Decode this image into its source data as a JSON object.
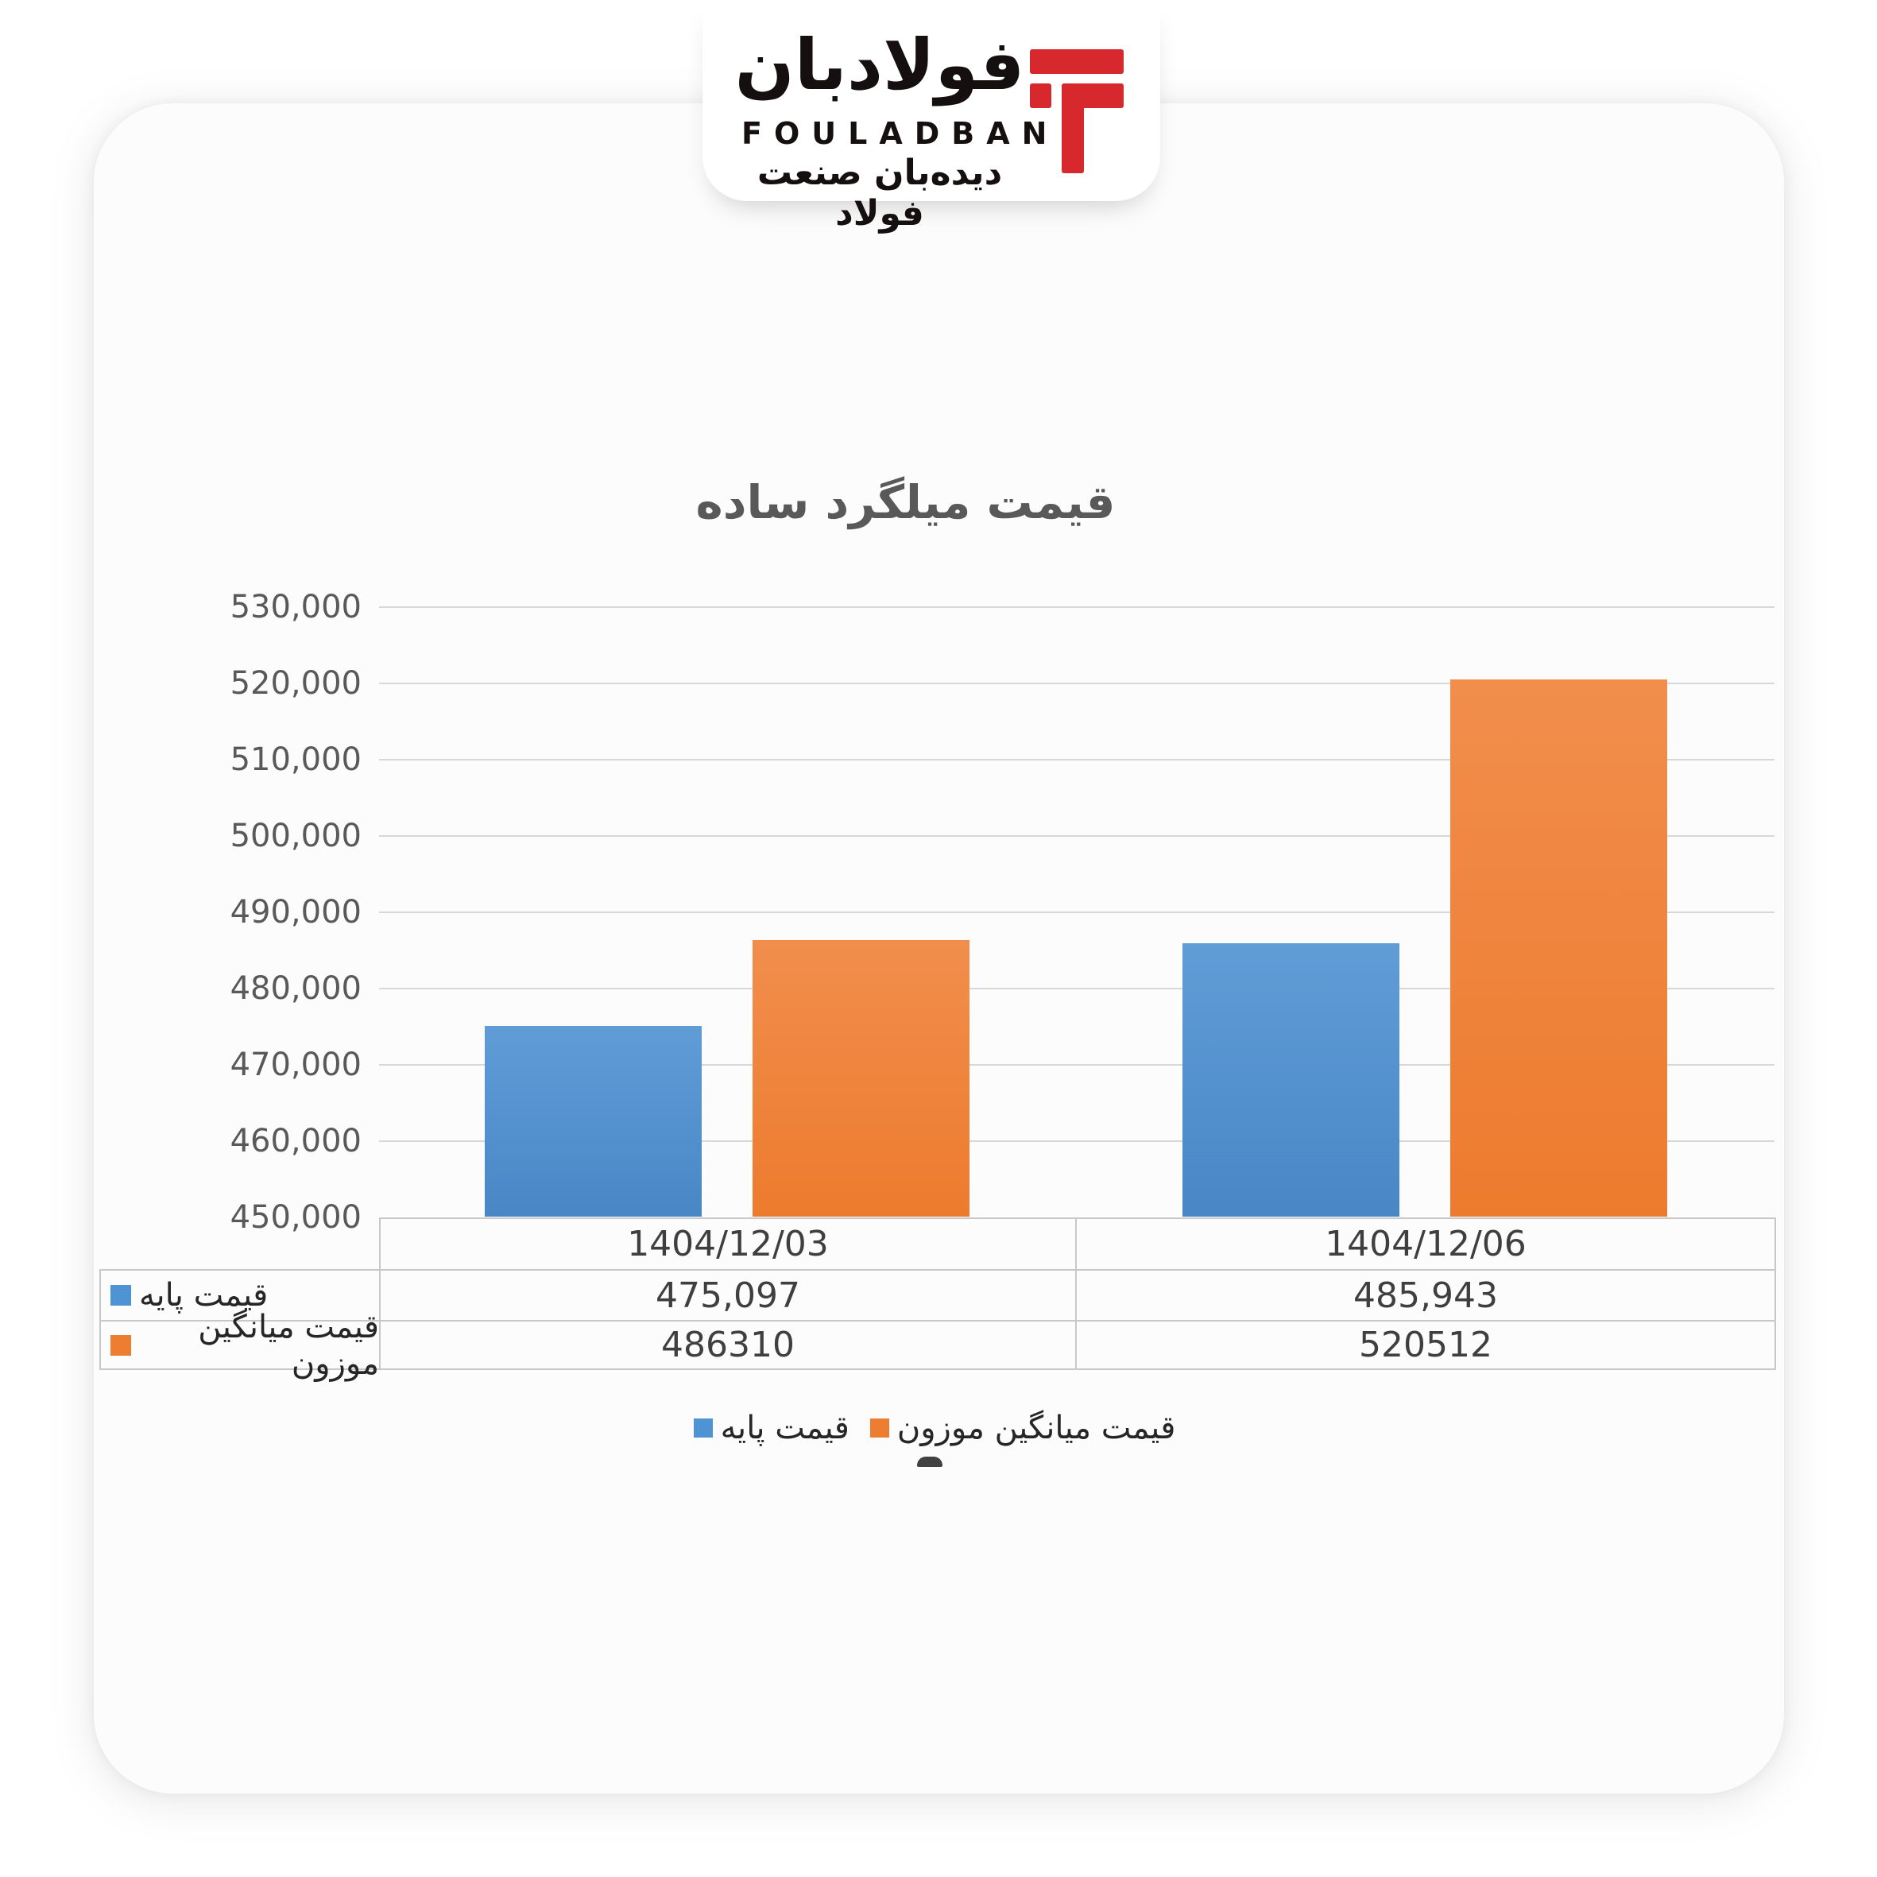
{
  "logo": {
    "wordmark_fa": "فولادبان",
    "wordmark_en": "FOULADBAN",
    "tagline_fa": "دیده‌بان صنعت فولاد",
    "brand_red": "#d7282e"
  },
  "chart_data": {
    "type": "bar",
    "title": "قیمت میلگرد ساده",
    "categories": [
      "1404/12/03",
      "1404/12/06"
    ],
    "series": [
      {
        "name": "قیمت پایه",
        "color": "#4e94d4",
        "values": [
          475097,
          485943
        ],
        "display_values": [
          "475,097",
          "485,943"
        ]
      },
      {
        "name": "قیمت میانگین موزون",
        "color": "#ed7d31",
        "values": [
          486310,
          520512
        ],
        "display_values": [
          "486310",
          "520512"
        ]
      }
    ],
    "ylim": [
      450000,
      530000
    ],
    "ytick_step": 10000,
    "ytick_labels": [
      "450,000",
      "460,000",
      "470,000",
      "480,000",
      "490,000",
      "500,000",
      "510,000",
      "520,000",
      "530,000"
    ],
    "grid": true,
    "legend_position": "bottom",
    "data_table_shown": true
  }
}
